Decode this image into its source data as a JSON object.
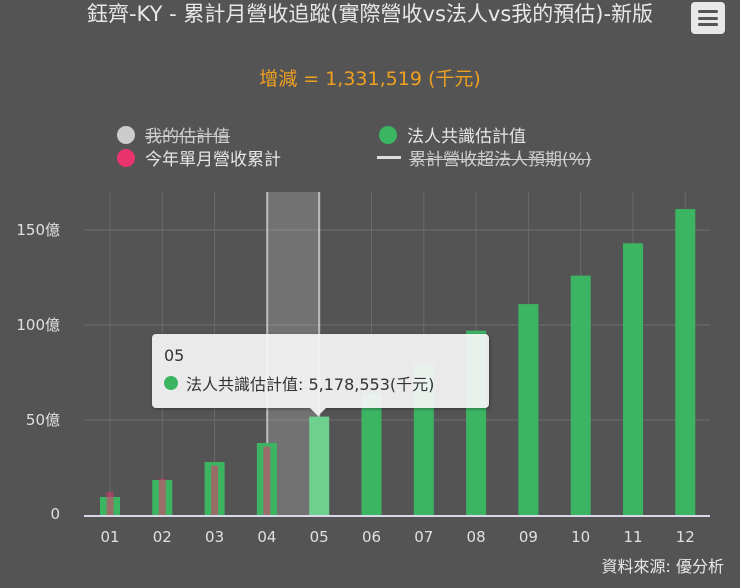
{
  "header": {
    "title": "鈺齊-KY - 累計月營收追蹤(實際營收vs法人vs我的預估)-新版",
    "subtitle": "增減 = 1,331,519 (千元)"
  },
  "menu": {
    "icon": "hamburger-menu-icon"
  },
  "legend": [
    {
      "label": "我的估計值",
      "color": "#cccccc",
      "symbol": "dot",
      "hidden": true
    },
    {
      "label": "今年單月營收累計",
      "color": "#e8336d",
      "symbol": "dot",
      "hidden": false
    },
    {
      "label": "法人共識估計值",
      "color": "#3cb563",
      "symbol": "dot",
      "hidden": false
    },
    {
      "label": "累計營收超法人預期(%)",
      "color": "#dddddd",
      "symbol": "line",
      "hidden": true
    }
  ],
  "tooltip": {
    "category": "05",
    "series": "法人共識估計值",
    "value_text": "法人共識估計值: 5,178,553(千元)",
    "color": "#3cb563"
  },
  "source": "資料來源: 優分析",
  "colors": {
    "background": "#545454",
    "consensus": "#3cb563",
    "actual": "#e8336d",
    "highlight": "rgba(255,255,255,0.2)",
    "subtitle": "#f0a020"
  },
  "chart_data": {
    "type": "bar",
    "title": "鈺齊-KY - 累計月營收追蹤(實際營收vs法人vs我的預估)-新版",
    "subtitle": "增減 = 1,331,519 (千元)",
    "xlabel": "",
    "ylabel": "",
    "categories": [
      "01",
      "02",
      "03",
      "04",
      "05",
      "06",
      "07",
      "08",
      "09",
      "10",
      "11",
      "12"
    ],
    "y_ticks": [
      "0",
      "50億",
      "100億",
      "150億"
    ],
    "ylim": [
      0,
      170
    ],
    "y_unit": "億",
    "grid": true,
    "legend_position": "top",
    "series": [
      {
        "name": "法人共識估計值",
        "color": "#3cb563",
        "values": [
          9.5,
          18.4,
          27.9,
          37.9,
          51.79,
          64,
          80,
          97,
          111,
          126,
          143,
          161
        ]
      },
      {
        "name": "今年單月營收累計",
        "color": "#e8336d",
        "values": [
          12,
          19,
          26,
          36,
          null,
          null,
          null,
          null,
          null,
          null,
          null,
          null
        ]
      },
      {
        "name": "我的估計值",
        "color": "#cccccc",
        "hidden": true,
        "values": []
      },
      {
        "name": "累計營收超法人預期(%)",
        "color": "#dddddd",
        "hidden": true,
        "type": "line",
        "values": []
      }
    ],
    "highlighted_category": "05",
    "tooltip_value_thousand_ntd": 5178553
  }
}
